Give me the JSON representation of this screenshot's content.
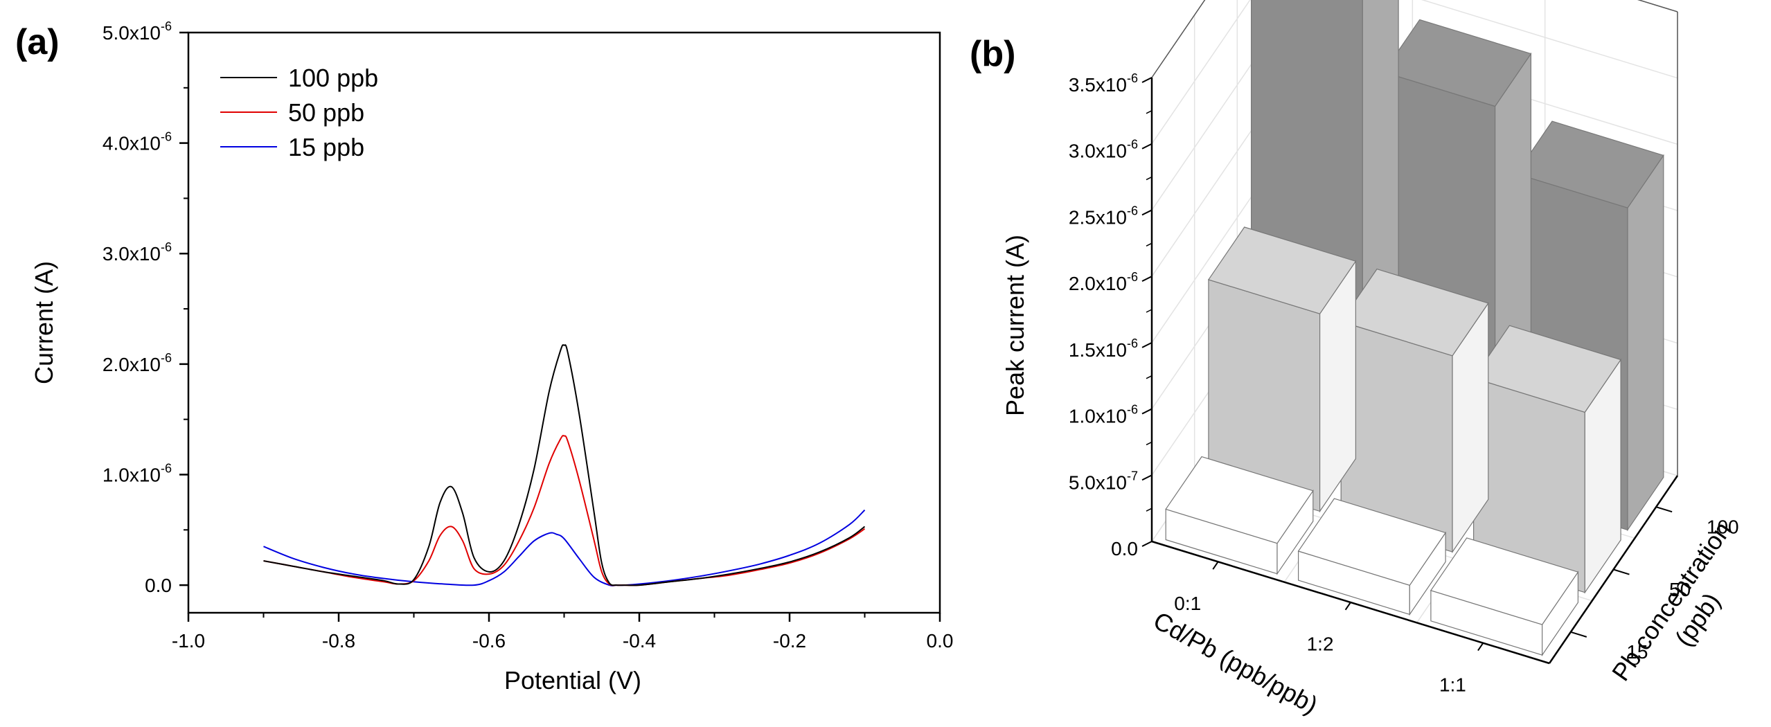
{
  "panels": {
    "a": {
      "label": "(a)"
    },
    "b": {
      "label": "(b)"
    }
  },
  "chart_data": [
    {
      "type": "line",
      "panel": "(a)",
      "title": "",
      "xlabel": "Potential (V)",
      "ylabel": "Current (A)",
      "xlim": [
        -1.0,
        0.0
      ],
      "ylim": [
        -2.5e-07,
        5e-06
      ],
      "xticks": [
        -1.0,
        -0.8,
        -0.6,
        -0.4,
        -0.2,
        0.0
      ],
      "xtick_labels": [
        "-1.0",
        "-0.8",
        "-0.6",
        "-0.4",
        "-0.2",
        "0.0"
      ],
      "yticks": [
        0,
        1e-06,
        2e-06,
        3e-06,
        4e-06,
        5e-06
      ],
      "ytick_labels": [
        {
          "base": "0.0",
          "exp": ""
        },
        {
          "base": "1.0x10",
          "exp": "-6"
        },
        {
          "base": "2.0x10",
          "exp": "-6"
        },
        {
          "base": "3.0x10",
          "exp": "-6"
        },
        {
          "base": "4.0x10",
          "exp": "-6"
        },
        {
          "base": "5.0x10",
          "exp": "-6"
        }
      ],
      "legend_position": "top-left",
      "series": [
        {
          "name": "100 ppb",
          "color": "#000000",
          "x": [
            -0.9,
            -0.86,
            -0.82,
            -0.78,
            -0.74,
            -0.72,
            -0.7,
            -0.68,
            -0.665,
            -0.65,
            -0.635,
            -0.62,
            -0.6,
            -0.58,
            -0.56,
            -0.54,
            -0.52,
            -0.505,
            -0.5,
            -0.495,
            -0.48,
            -0.46,
            -0.45,
            -0.44,
            -0.43,
            -0.42,
            -0.4,
            -0.36,
            -0.32,
            -0.28,
            -0.24,
            -0.2,
            -0.16,
            -0.12,
            -0.1
          ],
          "y": [
            2.2e-07,
            1.7e-07,
            1.2e-07,
            8e-08,
            4e-08,
            1e-08,
            5e-08,
            3.5e-07,
            7.5e-07,
            8.9e-07,
            6.5e-07,
            2.5e-07,
            1.2e-07,
            2.2e-07,
            5.5e-07,
            1.05e-06,
            1.75e-06,
            2.12e-06,
            2.17e-06,
            2.1e-06,
            1.55e-06,
            6.5e-07,
            2e-07,
            2e-08,
            0.0,
            0.0,
            0.0,
            3e-08,
            6e-08,
            1e-07,
            1.5e-07,
            2.1e-07,
            3e-07,
            4.3e-07,
            5.3e-07
          ]
        },
        {
          "name": "50 ppb",
          "color": "#e00000",
          "x": [
            -0.9,
            -0.86,
            -0.82,
            -0.78,
            -0.74,
            -0.72,
            -0.7,
            -0.68,
            -0.665,
            -0.65,
            -0.635,
            -0.62,
            -0.6,
            -0.58,
            -0.56,
            -0.54,
            -0.52,
            -0.505,
            -0.5,
            -0.495,
            -0.48,
            -0.46,
            -0.45,
            -0.44,
            -0.43,
            -0.42,
            -0.4,
            -0.36,
            -0.32,
            -0.28,
            -0.24,
            -0.2,
            -0.16,
            -0.12,
            -0.1
          ],
          "y": [
            2.2e-07,
            1.7e-07,
            1.2e-07,
            7e-08,
            3e-08,
            1e-08,
            4e-08,
            2.2e-07,
            4.5e-07,
            5.3e-07,
            4e-07,
            1.5e-07,
            1e-07,
            1.8e-07,
            4e-07,
            7e-07,
            1.1e-06,
            1.32e-06,
            1.35e-06,
            1.3e-06,
            9.5e-07,
            4e-07,
            1.2e-07,
            1e-08,
            0.0,
            0.0,
            0.0,
            3e-08,
            6e-08,
            9e-08,
            1.4e-07,
            2e-07,
            2.9e-07,
            4.2e-07,
            5.1e-07
          ]
        },
        {
          "name": "15 ppb",
          "color": "#0000e0",
          "x": [
            -0.9,
            -0.86,
            -0.82,
            -0.78,
            -0.74,
            -0.7,
            -0.66,
            -0.62,
            -0.6,
            -0.58,
            -0.56,
            -0.54,
            -0.52,
            -0.51,
            -0.5,
            -0.48,
            -0.46,
            -0.44,
            -0.43,
            -0.42,
            -0.4,
            -0.36,
            -0.32,
            -0.28,
            -0.24,
            -0.2,
            -0.16,
            -0.12,
            -0.1
          ],
          "y": [
            3.5e-07,
            2.4e-07,
            1.6e-07,
            1e-07,
            6e-08,
            3e-08,
            1e-08,
            0.0,
            4e-08,
            1.2e-07,
            2.6e-07,
            4e-07,
            4.7e-07,
            4.6e-07,
            4.2e-07,
            2.4e-07,
            7e-08,
            0.0,
            0.0,
            0.0,
            1e-08,
            4e-08,
            8e-08,
            1.3e-07,
            1.9e-07,
            2.7e-07,
            3.8e-07,
            5.5e-07,
            6.8e-07
          ]
        }
      ]
    },
    {
      "type": "bar3d",
      "panel": "(b)",
      "title": "",
      "ylabel": "Peak current (A)",
      "xlabel": "Cd/Pb (ppb/ppb)",
      "zlabel": "Pb concentration (ppb)",
      "zlabel_lines": [
        "Pb concentration",
        "(ppb)"
      ],
      "ylim": [
        0,
        3.5e-06
      ],
      "yticks": [
        0,
        5e-07,
        1e-06,
        1.5e-06,
        2e-06,
        2.5e-06,
        3e-06,
        3.5e-06
      ],
      "ytick_labels": [
        {
          "base": "0.0",
          "exp": ""
        },
        {
          "base": "5.0x10",
          "exp": "-7"
        },
        {
          "base": "1.0x10",
          "exp": "-6"
        },
        {
          "base": "1.5x10",
          "exp": "-6"
        },
        {
          "base": "2.0x10",
          "exp": "-6"
        },
        {
          "base": "2.5x10",
          "exp": "-6"
        },
        {
          "base": "3.0x10",
          "exp": "-6"
        },
        {
          "base": "3.5x10",
          "exp": "-6"
        }
      ],
      "x_categories": [
        "0:1",
        "1:2",
        "1:1"
      ],
      "z_categories": [
        "15",
        "50",
        "100"
      ],
      "series": [
        {
          "name": "15",
          "color": "#ffffff",
          "values": [
            2.3e-07,
            2.2e-07,
            2.3e-07
          ]
        },
        {
          "name": "50",
          "color": "#d9d9d9",
          "values": [
            1.49e-06,
            1.48e-06,
            1.36e-06
          ]
        },
        {
          "name": "100",
          "color": "#999999",
          "values": [
            3.43e-06,
            2.89e-06,
            2.43e-06
          ]
        }
      ]
    }
  ]
}
